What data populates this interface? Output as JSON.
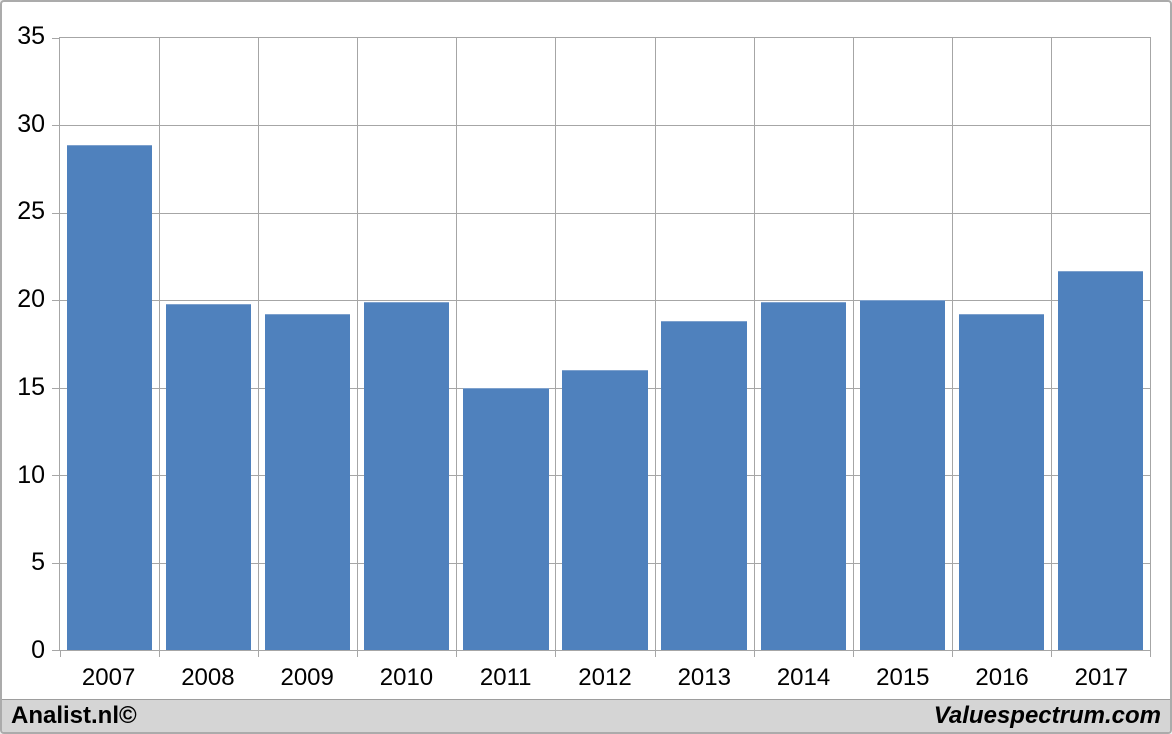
{
  "footer": {
    "left": "Analist.nl©",
    "right": "Valuespectrum.com"
  },
  "colors": {
    "bar": "#4f81bd",
    "bar_edge": "#7ea1cd",
    "grid": "#a6a6a6",
    "frame_border": "#ababab",
    "text": "#000000",
    "footer_bg": "#d5d5d5",
    "footer_border": "#9d9d9d",
    "background": "#ffffff"
  },
  "chart_data": {
    "type": "bar",
    "title": "",
    "xlabel": "",
    "ylabel": "",
    "categories": [
      "2007",
      "2008",
      "2009",
      "2010",
      "2011",
      "2012",
      "2013",
      "2014",
      "2015",
      "2016",
      "2017"
    ],
    "values": [
      28.9,
      19.8,
      19.2,
      19.9,
      15.0,
      16.0,
      18.8,
      19.9,
      20.0,
      19.2,
      21.7
    ],
    "ylim": [
      0,
      35
    ],
    "yticks": [
      0,
      5,
      10,
      15,
      20,
      25,
      30,
      35
    ],
    "grid": true,
    "legend_position": "none",
    "bar_fill_ratio": 0.86
  }
}
